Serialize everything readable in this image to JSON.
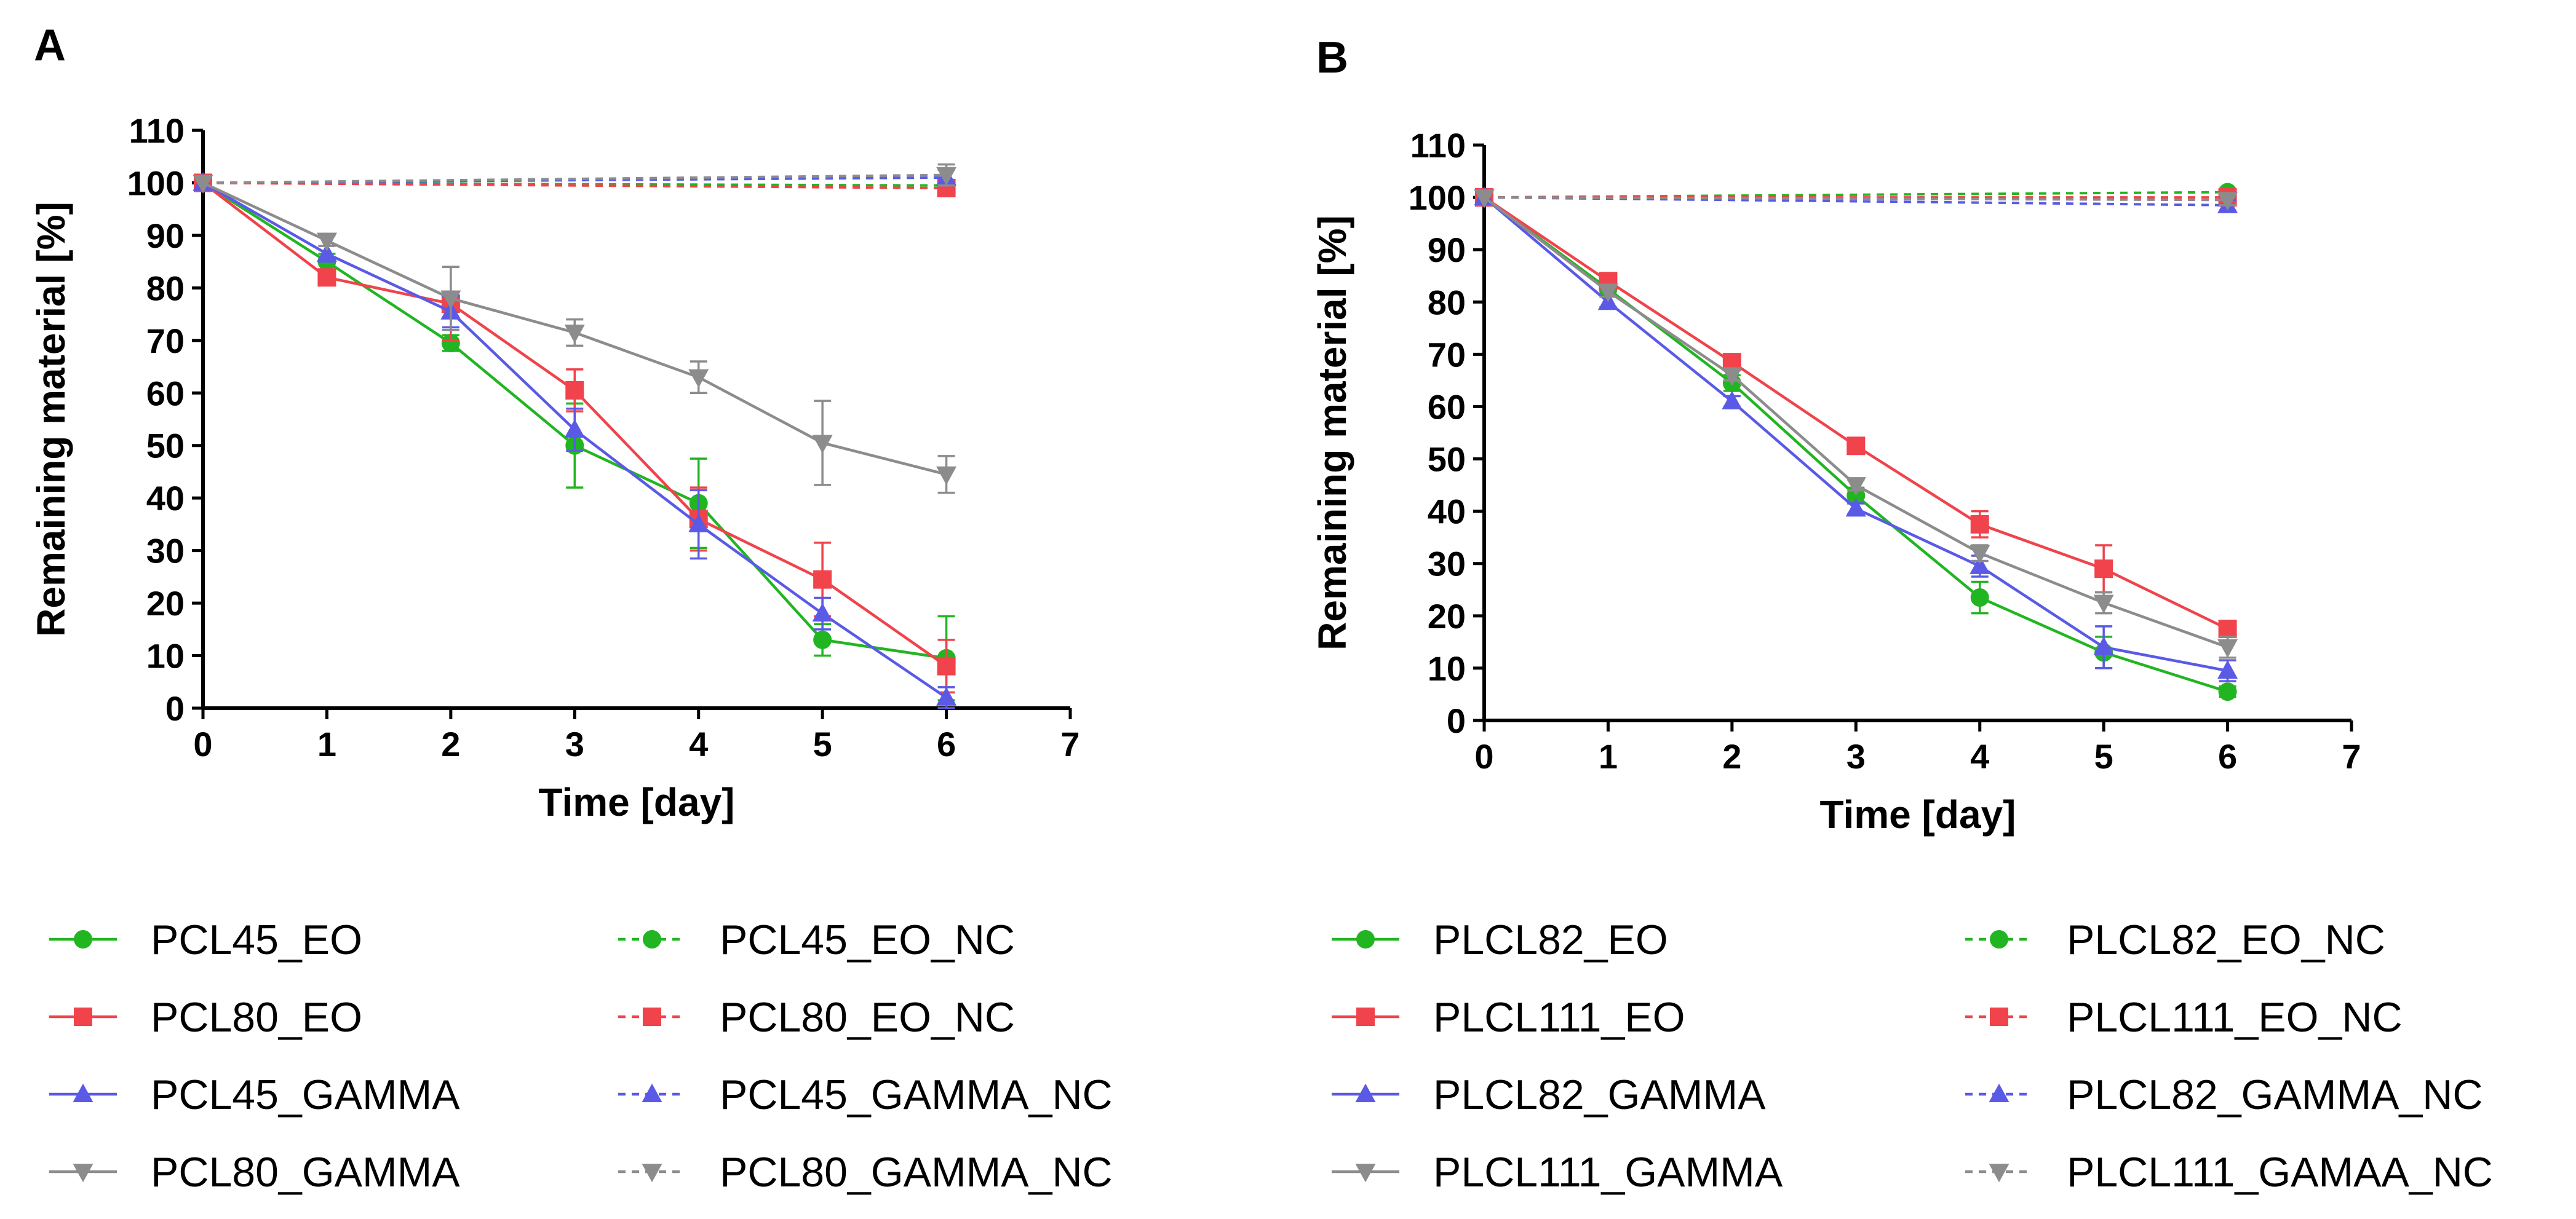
{
  "chart_data": [
    {
      "panel": "A",
      "type": "line",
      "xlabel": "Time [day]",
      "ylabel": "Remaining material [%]",
      "xlim": [
        0,
        7
      ],
      "ylim": [
        0,
        110
      ],
      "xticks": [
        0,
        1,
        2,
        3,
        4,
        5,
        6,
        7
      ],
      "yticks": [
        0,
        10,
        20,
        30,
        40,
        50,
        60,
        70,
        80,
        90,
        100,
        110
      ],
      "x": [
        0,
        1,
        2,
        3,
        4,
        5,
        6
      ],
      "grid": false,
      "legend_position": "bottom",
      "series": [
        {
          "name": "PCL45_EO",
          "color": "#22b522",
          "marker": "circle",
          "dashed": false,
          "values": [
            100,
            85,
            69.5,
            50,
            39,
            13,
            9.5
          ],
          "errors": [
            0,
            1.5,
            1.5,
            8,
            8.5,
            3,
            8
          ]
        },
        {
          "name": "PCL80_EO",
          "color": "#f0434b",
          "marker": "square",
          "dashed": false,
          "values": [
            100,
            82,
            77,
            60.5,
            36,
            24.5,
            8
          ],
          "errors": [
            0,
            1.5,
            7,
            4,
            6,
            7,
            5
          ]
        },
        {
          "name": "PCL45_GAMMA",
          "color": "#5a5ae6",
          "marker": "triangle-up",
          "dashed": false,
          "values": [
            100,
            86.5,
            75.5,
            53,
            35,
            18,
            2
          ],
          "errors": [
            0,
            1.5,
            3,
            4,
            6.5,
            3,
            2
          ]
        },
        {
          "name": "PCL80_GAMMA",
          "color": "#8c8c8c",
          "marker": "triangle-down",
          "dashed": false,
          "values": [
            100,
            89,
            78,
            71.5,
            63,
            50.5,
            44.5
          ],
          "errors": [
            0,
            1,
            6,
            2.5,
            3,
            8,
            3.5
          ]
        },
        {
          "name": "PCL45_EO_NC",
          "color": "#22b522",
          "marker": "circle",
          "dashed": true,
          "values": [
            100,
            null,
            null,
            null,
            null,
            null,
            99.5
          ],
          "errors": [
            0,
            0,
            0,
            0,
            0,
            0,
            1
          ]
        },
        {
          "name": "PCL80_EO_NC",
          "color": "#f0434b",
          "marker": "square",
          "dashed": true,
          "values": [
            100,
            null,
            null,
            null,
            null,
            null,
            99
          ],
          "errors": [
            0,
            0,
            0,
            0,
            0,
            0,
            1
          ]
        },
        {
          "name": "PCL45_GAMMA_NC",
          "color": "#5a5ae6",
          "marker": "triangle-up",
          "dashed": true,
          "values": [
            100,
            null,
            null,
            null,
            null,
            null,
            101
          ],
          "errors": [
            0,
            0,
            0,
            0,
            0,
            0,
            1.5
          ]
        },
        {
          "name": "PCL80_GAMMA_NC",
          "color": "#8c8c8c",
          "marker": "triangle-down",
          "dashed": true,
          "values": [
            100,
            null,
            null,
            null,
            null,
            null,
            101.5
          ],
          "errors": [
            0,
            0,
            0,
            0,
            0,
            0,
            2
          ]
        }
      ]
    },
    {
      "panel": "B",
      "type": "line",
      "xlabel": "Time [day]",
      "ylabel": "Remaining material [%]",
      "xlim": [
        0,
        7
      ],
      "ylim": [
        0,
        110
      ],
      "xticks": [
        0,
        1,
        2,
        3,
        4,
        5,
        6,
        7
      ],
      "yticks": [
        0,
        10,
        20,
        30,
        40,
        50,
        60,
        70,
        80,
        90,
        100,
        110
      ],
      "x": [
        0,
        1,
        2,
        3,
        4,
        5,
        6
      ],
      "grid": false,
      "legend_position": "bottom",
      "series": [
        {
          "name": "PLCL82_EO",
          "color": "#22b522",
          "marker": "circle",
          "dashed": false,
          "values": [
            100,
            82.5,
            64.5,
            43,
            23.5,
            13,
            5.5
          ],
          "errors": [
            0,
            1,
            1.5,
            1.5,
            3,
            3,
            1
          ]
        },
        {
          "name": "PLCL111_EO",
          "color": "#f0434b",
          "marker": "square",
          "dashed": false,
          "values": [
            100,
            84,
            68.5,
            52.5,
            37.5,
            29,
            17.5
          ],
          "errors": [
            0,
            1,
            1.5,
            1.5,
            2.5,
            4.5,
            1.5
          ]
        },
        {
          "name": "PLCL82_GAMMA",
          "color": "#5a5ae6",
          "marker": "triangle-up",
          "dashed": false,
          "values": [
            100,
            80,
            61,
            40.5,
            29.5,
            14,
            9.5
          ],
          "errors": [
            0,
            1,
            1,
            1,
            2,
            4,
            2
          ]
        },
        {
          "name": "PLCL111_GAMMA",
          "color": "#8c8c8c",
          "marker": "triangle-down",
          "dashed": false,
          "values": [
            100,
            82,
            66,
            45,
            32,
            22.5,
            14
          ],
          "errors": [
            0,
            1,
            1,
            1,
            1.5,
            2,
            2
          ]
        },
        {
          "name": "PLCL82_EO_NC",
          "color": "#22b522",
          "marker": "circle",
          "dashed": true,
          "values": [
            100,
            null,
            null,
            null,
            null,
            null,
            101
          ],
          "errors": [
            0,
            0,
            0,
            0,
            0,
            0,
            0.5
          ]
        },
        {
          "name": "PLCL111_EO_NC",
          "color": "#f0434b",
          "marker": "square",
          "dashed": true,
          "values": [
            100,
            null,
            null,
            null,
            null,
            null,
            100
          ],
          "errors": [
            0,
            0,
            0,
            0,
            0,
            0,
            1
          ]
        },
        {
          "name": "PLCL82_GAMMA_NC",
          "color": "#5a5ae6",
          "marker": "triangle-up",
          "dashed": true,
          "values": [
            100,
            null,
            null,
            null,
            null,
            null,
            98.5
          ],
          "errors": [
            0,
            0,
            0,
            0,
            0,
            0,
            1
          ]
        },
        {
          "name": "PLCL111_GAMAA_NC",
          "color": "#8c8c8c",
          "marker": "triangle-down",
          "dashed": true,
          "values": [
            100,
            null,
            null,
            null,
            null,
            null,
            99.5
          ],
          "errors": [
            0,
            0,
            0,
            0,
            0,
            0,
            1
          ]
        }
      ]
    }
  ]
}
